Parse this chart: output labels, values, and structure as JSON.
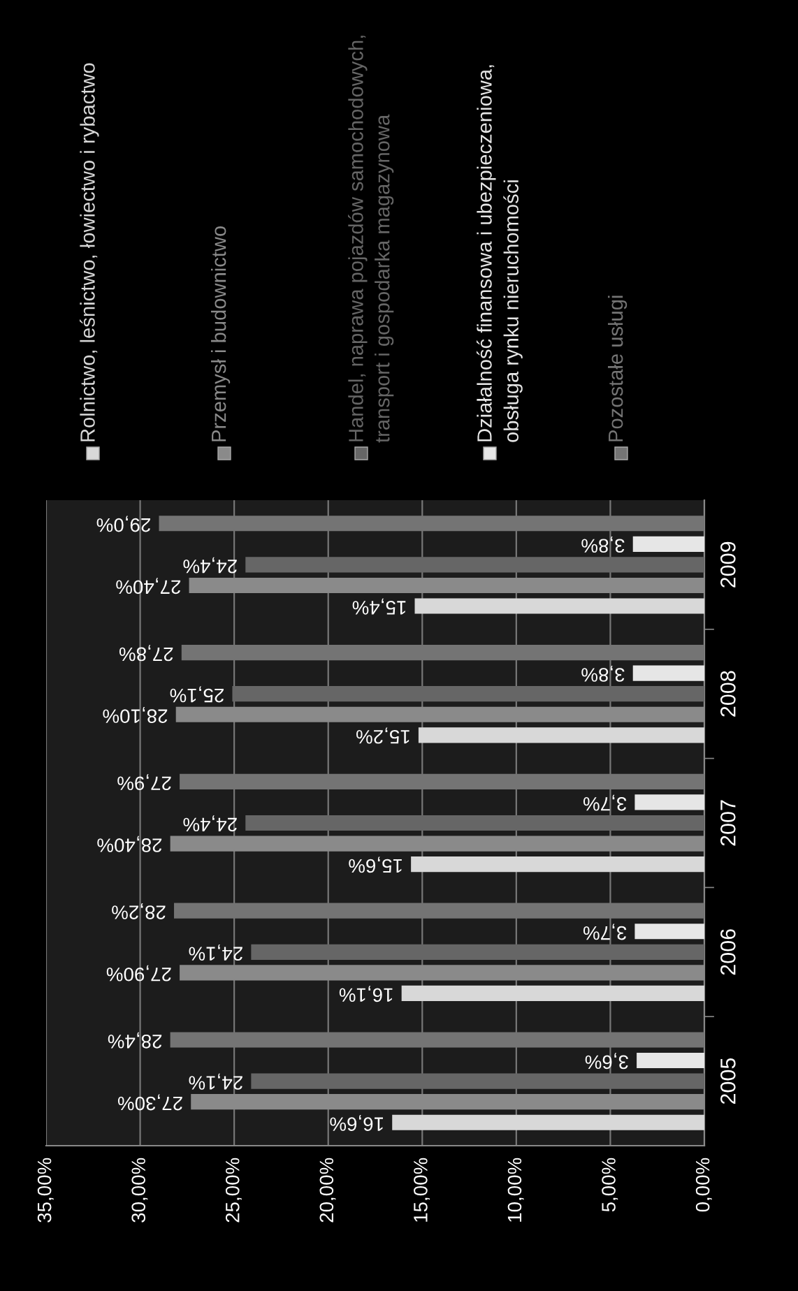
{
  "chart_data": {
    "type": "bar",
    "orientation": "horizontal",
    "categories": [
      "2009",
      "2008",
      "2007",
      "2006",
      "2005"
    ],
    "series": [
      {
        "name": "Rolnictwo, leśnictwo, łowiectwo i rybactwo",
        "color": "#d8d8d8",
        "values": [
          15.4,
          15.2,
          15.6,
          16.1,
          16.6
        ],
        "value_labels": [
          "15,4%",
          "15,2%",
          "15,6%",
          "16,1%",
          "16,6%"
        ]
      },
      {
        "name": "Przemysł i budownictwo",
        "color": "#8a8a8a",
        "values": [
          27.4,
          28.1,
          28.4,
          27.9,
          27.3
        ],
        "value_labels": [
          "27,40%",
          "28,10%",
          "28,40%",
          "27,90%",
          "27,30%"
        ]
      },
      {
        "name": "Handel, naprawa pojazdów samochodowych, transport i gospodarka magazynowa",
        "color": "#666666",
        "values": [
          24.4,
          25.1,
          24.4,
          24.1,
          24.1
        ],
        "value_labels": [
          "24,4%",
          "25,1%",
          "24,4%",
          "24,1%",
          "24,1%"
        ]
      },
      {
        "name": "Działalność finansowa i ubezpieczeniowa, obsługa rynku nieruchomości",
        "color": "#e6e6e6",
        "values": [
          3.8,
          3.8,
          3.7,
          3.7,
          3.6
        ],
        "value_labels": [
          "3,8%",
          "3,8%",
          "3,7%",
          "3,7%",
          "3,6%"
        ]
      },
      {
        "name": "Pozostałe usługi",
        "color": "#747474",
        "values": [
          29.0,
          27.8,
          27.9,
          28.2,
          28.4
        ],
        "value_labels": [
          "29,0%",
          "27,8%",
          "27,9%",
          "28,2%",
          "28,4%"
        ]
      }
    ],
    "xlim": [
      35,
      0
    ],
    "xticks": [
      {
        "value": 35,
        "label": "35,00%"
      },
      {
        "value": 30,
        "label": "30,00%"
      },
      {
        "value": 25,
        "label": "25,00%"
      },
      {
        "value": 20,
        "label": "20,00%"
      },
      {
        "value": 15,
        "label": "15,00%"
      },
      {
        "value": 10,
        "label": "10,00%"
      },
      {
        "value": 5,
        "label": "5,00%"
      },
      {
        "value": 0,
        "label": "0,00%"
      }
    ],
    "grid": "x",
    "legend": "top"
  }
}
